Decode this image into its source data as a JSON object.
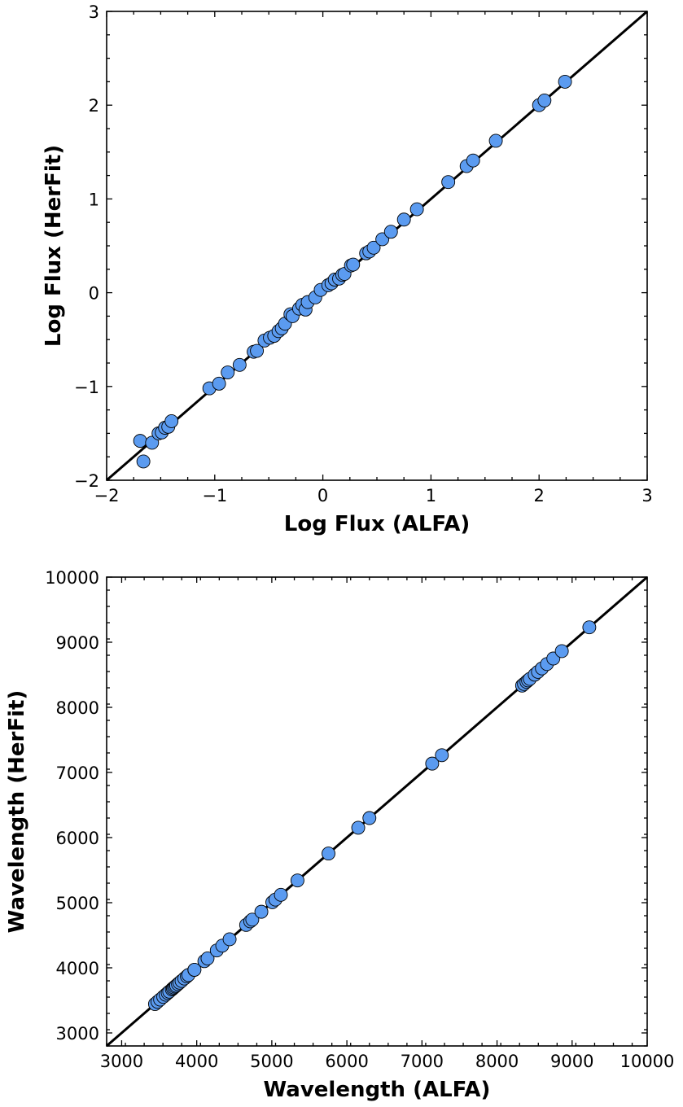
{
  "chart_data": [
    {
      "type": "scatter",
      "xlabel": "Log Flux (ALFA)",
      "ylabel": "Log Flux (HerFit)",
      "xlim": [
        -2,
        3
      ],
      "ylim": [
        -2,
        3
      ],
      "xticks": [
        -2,
        -1,
        0,
        1,
        2,
        3
      ],
      "yticks": [
        -2,
        -1,
        0,
        1,
        2,
        3
      ],
      "xtick_labels": [
        "−2",
        "−1",
        "0",
        "1",
        "2",
        "3"
      ],
      "ytick_labels": [
        "−2",
        "−1",
        "0",
        "1",
        "2",
        "3"
      ],
      "minor_step": 0.25,
      "reference_line": "y = x",
      "grid": false,
      "marker_color": "#5b9bf0",
      "points": [
        [
          -1.69,
          -1.58
        ],
        [
          -1.66,
          -1.8
        ],
        [
          -1.58,
          -1.6
        ],
        [
          -1.52,
          -1.5
        ],
        [
          -1.49,
          -1.49
        ],
        [
          -1.46,
          -1.44
        ],
        [
          -1.43,
          -1.43
        ],
        [
          -1.4,
          -1.37
        ],
        [
          -1.05,
          -1.02
        ],
        [
          -0.96,
          -0.97
        ],
        [
          -0.88,
          -0.85
        ],
        [
          -0.77,
          -0.77
        ],
        [
          -0.64,
          -0.63
        ],
        [
          -0.61,
          -0.62
        ],
        [
          -0.54,
          -0.51
        ],
        [
          -0.49,
          -0.48
        ],
        [
          -0.45,
          -0.46
        ],
        [
          -0.41,
          -0.41
        ],
        [
          -0.38,
          -0.38
        ],
        [
          -0.35,
          -0.33
        ],
        [
          -0.3,
          -0.23
        ],
        [
          -0.28,
          -0.25
        ],
        [
          -0.22,
          -0.17
        ],
        [
          -0.19,
          -0.13
        ],
        [
          -0.16,
          -0.18
        ],
        [
          -0.14,
          -0.1
        ],
        [
          -0.07,
          -0.05
        ],
        [
          -0.02,
          0.03
        ],
        [
          0.05,
          0.08
        ],
        [
          0.08,
          0.1
        ],
        [
          0.11,
          0.14
        ],
        [
          0.15,
          0.15
        ],
        [
          0.18,
          0.19
        ],
        [
          0.2,
          0.2
        ],
        [
          0.26,
          0.29
        ],
        [
          0.28,
          0.3
        ],
        [
          0.4,
          0.42
        ],
        [
          0.43,
          0.44
        ],
        [
          0.47,
          0.48
        ],
        [
          0.55,
          0.57
        ],
        [
          0.63,
          0.65
        ],
        [
          0.75,
          0.78
        ],
        [
          0.87,
          0.89
        ],
        [
          1.16,
          1.18
        ],
        [
          1.33,
          1.35
        ],
        [
          1.39,
          1.41
        ],
        [
          1.6,
          1.62
        ],
        [
          2.0,
          2.0
        ],
        [
          2.05,
          2.05
        ],
        [
          2.24,
          2.25
        ]
      ]
    },
    {
      "type": "scatter",
      "xlabel": "Wavelength (ALFA)",
      "ylabel": "Wavelength (HerFit)",
      "xlim": [
        2800,
        10000
      ],
      "ylim": [
        2800,
        10000
      ],
      "xticks": [
        3000,
        4000,
        5000,
        6000,
        7000,
        8000,
        9000,
        10000
      ],
      "yticks": [
        3000,
        4000,
        5000,
        6000,
        7000,
        8000,
        9000,
        10000
      ],
      "xtick_labels": [
        "3000",
        "4000",
        "5000",
        "6000",
        "7000",
        "8000",
        "9000",
        "10000"
      ],
      "ytick_labels": [
        "3000",
        "4000",
        "5000",
        "6000",
        "7000",
        "8000",
        "9000",
        "10000"
      ],
      "minor_step": 250,
      "reference_line": "y = x",
      "grid": false,
      "marker_color": "#5b9bf0",
      "points": [
        [
          3444,
          3444
        ],
        [
          3478,
          3478
        ],
        [
          3512,
          3512
        ],
        [
          3554,
          3554
        ],
        [
          3587,
          3587
        ],
        [
          3614,
          3614
        ],
        [
          3634,
          3634
        ],
        [
          3669,
          3669
        ],
        [
          3683,
          3683
        ],
        [
          3697,
          3697
        ],
        [
          3712,
          3712
        ],
        [
          3726,
          3726
        ],
        [
          3750,
          3750
        ],
        [
          3771,
          3771
        ],
        [
          3798,
          3798
        ],
        [
          3835,
          3835
        ],
        [
          3869,
          3869
        ],
        [
          3889,
          3889
        ],
        [
          3968,
          3968
        ],
        [
          3970,
          3970
        ],
        [
          4102,
          4102
        ],
        [
          4144,
          4144
        ],
        [
          4267,
          4267
        ],
        [
          4340,
          4340
        ],
        [
          4438,
          4438
        ],
        [
          4658,
          4658
        ],
        [
          4713,
          4713
        ],
        [
          4740,
          4740
        ],
        [
          4861,
          4861
        ],
        [
          5007,
          5007
        ],
        [
          5048,
          5048
        ],
        [
          5121,
          5121
        ],
        [
          5342,
          5342
        ],
        [
          5755,
          5755
        ],
        [
          6151,
          6151
        ],
        [
          6300,
          6300
        ],
        [
          7136,
          7136
        ],
        [
          7265,
          7265
        ],
        [
          8334,
          8334
        ],
        [
          8359,
          8359
        ],
        [
          8392,
          8392
        ],
        [
          8413,
          8413
        ],
        [
          8437,
          8437
        ],
        [
          8502,
          8502
        ],
        [
          8545,
          8545
        ],
        [
          8598,
          8598
        ],
        [
          8665,
          8665
        ],
        [
          8750,
          8750
        ],
        [
          8863,
          8863
        ],
        [
          9229,
          9229
        ]
      ]
    }
  ]
}
